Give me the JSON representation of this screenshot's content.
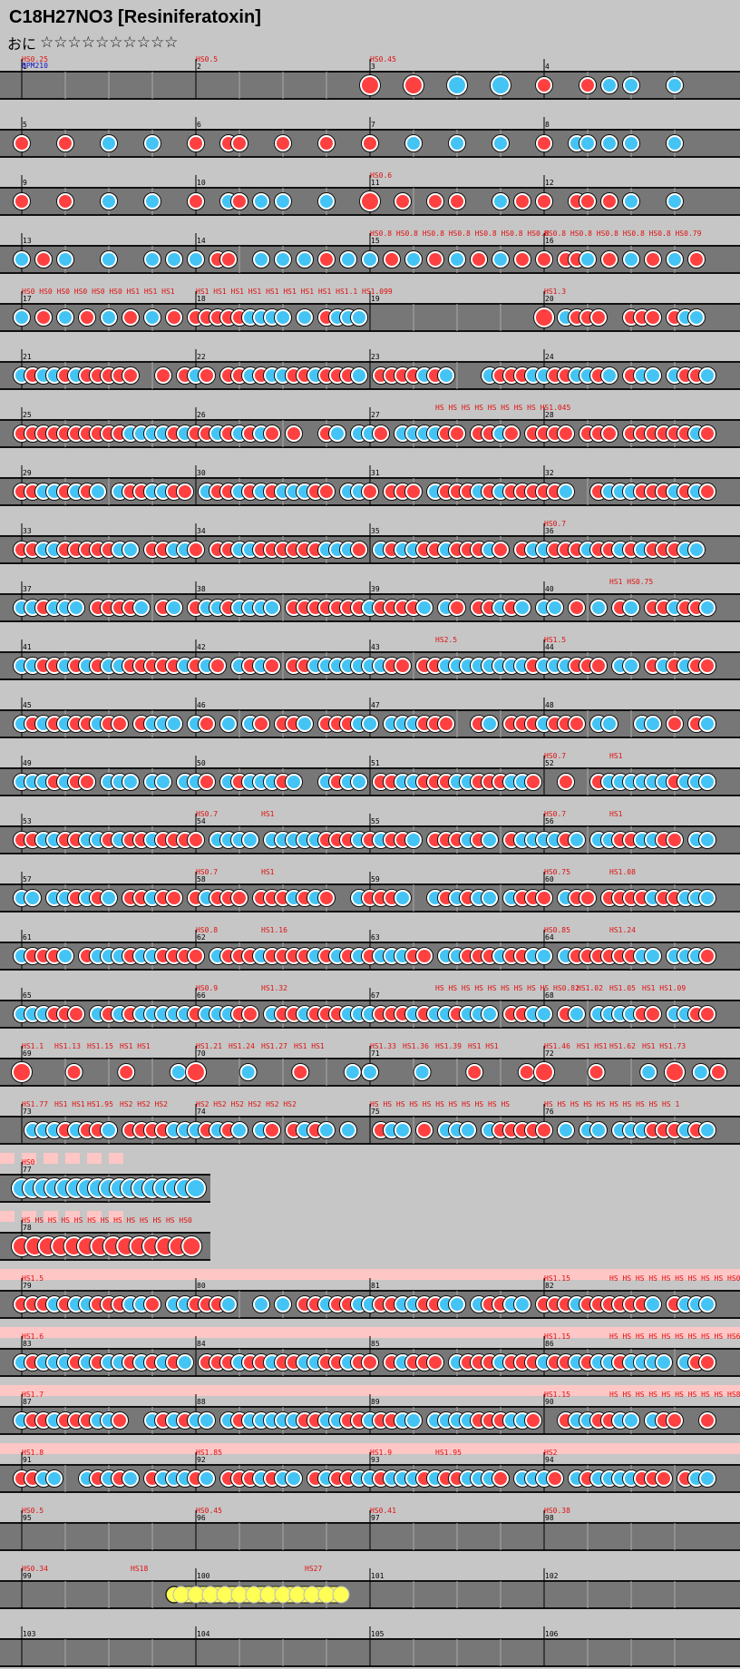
{
  "song_title": "C18H27NO3 [Resiniferatoxin]",
  "difficulty": {
    "label": "おに",
    "stars": "☆☆☆☆☆☆☆☆☆☆"
  },
  "colors": {
    "background": "#c6c6c6",
    "lane": "#777777",
    "lane_border": "#111111",
    "don": "#ff4040",
    "ka": "#44c4f4",
    "drumroll": "#ffff55",
    "gogo_band": "#ffc6c6",
    "label_red": "#e01010",
    "label_blue": "#1414c8"
  },
  "chart_data": {
    "type": "taiko_note_chart",
    "measures_per_row": 4,
    "first_label_blue": "BPM210",
    "rows": [
      {
        "m": [
          1,
          2,
          3,
          4
        ],
        "labels": [
          [
            "HS0.25",
            0,
            0
          ],
          [
            "HS0.5",
            1,
            0
          ],
          [
            "HS0.45",
            2,
            0
          ]
        ],
        "notes": [
          [
            2,
            0,
            "D"
          ],
          [
            2,
            2,
            "D"
          ],
          [
            2,
            4,
            "K"
          ],
          [
            2,
            6,
            "K"
          ],
          [
            3,
            0,
            "d"
          ],
          [
            3,
            2,
            "d"
          ],
          [
            3,
            3,
            "k"
          ],
          [
            3,
            4,
            "k"
          ],
          [
            3,
            6,
            "k"
          ]
        ]
      },
      {
        "m": [
          5,
          6,
          7,
          8
        ],
        "labels": [],
        "notes": [
          [
            0,
            0,
            "d"
          ],
          [
            0,
            2,
            "d"
          ],
          [
            0,
            4,
            "k"
          ],
          [
            0,
            6,
            "k"
          ],
          [
            1,
            0,
            "d"
          ],
          [
            1,
            1.5,
            "d"
          ],
          [
            1,
            2,
            "d"
          ],
          [
            1,
            4,
            "d"
          ],
          [
            1,
            6,
            "d"
          ],
          [
            2,
            0,
            "d"
          ],
          [
            2,
            2,
            "k"
          ],
          [
            2,
            4,
            "k"
          ],
          [
            2,
            6,
            "k"
          ],
          [
            3,
            0,
            "d"
          ],
          [
            3,
            1.5,
            "k"
          ],
          [
            3,
            2,
            "k"
          ],
          [
            3,
            3,
            "k"
          ],
          [
            3,
            4,
            "k"
          ],
          [
            3,
            6,
            "k"
          ]
        ]
      },
      {
        "m": [
          9,
          10,
          11,
          12
        ],
        "labels": [
          [
            "HS0.6",
            2,
            0
          ]
        ],
        "notes": [
          [
            0,
            0,
            "d"
          ],
          [
            0,
            2,
            "d"
          ],
          [
            0,
            4,
            "k"
          ],
          [
            0,
            6,
            "k"
          ],
          [
            1,
            0,
            "d"
          ],
          [
            1,
            1.5,
            "k"
          ],
          [
            1,
            2,
            "d"
          ],
          [
            1,
            3,
            "k"
          ],
          [
            1,
            4,
            "k"
          ],
          [
            1,
            6,
            "k"
          ],
          [
            2,
            0,
            "D"
          ],
          [
            2,
            1.5,
            "d"
          ],
          [
            2,
            3,
            "d"
          ],
          [
            2,
            4,
            "d"
          ],
          [
            2,
            6,
            "k"
          ],
          [
            2,
            7,
            "d"
          ],
          [
            3,
            0,
            "d"
          ],
          [
            3,
            1.5,
            "d"
          ],
          [
            3,
            2,
            "d"
          ],
          [
            3,
            3,
            "d"
          ],
          [
            3,
            4,
            "k"
          ],
          [
            3,
            6,
            "k"
          ]
        ]
      },
      {
        "m": [
          13,
          14,
          15,
          16
        ],
        "labels": [
          [
            "HS0.8 HS0.8 HS0.8 HS0.8 HS0.8 HS0.8 HS0.8",
            2,
            0
          ],
          [
            "HS0.8 HS0.8 HS0.8 HS0.8 HS0.8 HS0.79",
            3,
            0
          ]
        ],
        "notes": [
          [
            0,
            0,
            "k"
          ],
          [
            0,
            1,
            "d"
          ],
          [
            0,
            2,
            "k"
          ],
          [
            0,
            4,
            "k"
          ],
          [
            0,
            6,
            "k"
          ],
          [
            0,
            7,
            "k"
          ],
          [
            1,
            0,
            "k"
          ],
          [
            1,
            1,
            "d"
          ],
          [
            1,
            1.5,
            "d"
          ],
          [
            1,
            3,
            "k"
          ],
          [
            1,
            4,
            "k"
          ],
          [
            1,
            5,
            "k"
          ],
          [
            1,
            6,
            "d"
          ],
          [
            1,
            7,
            "k"
          ],
          [
            2,
            0,
            "k"
          ],
          [
            2,
            1,
            "d"
          ],
          [
            2,
            2,
            "k"
          ],
          [
            2,
            3,
            "d"
          ],
          [
            2,
            4,
            "k"
          ],
          [
            2,
            5,
            "d"
          ],
          [
            2,
            6,
            "k"
          ],
          [
            2,
            7,
            "d"
          ],
          [
            3,
            0,
            "d"
          ],
          [
            3,
            1,
            "d"
          ],
          [
            3,
            1.5,
            "d"
          ],
          [
            3,
            2,
            "k"
          ],
          [
            3,
            3,
            "d"
          ],
          [
            3,
            4,
            "k"
          ],
          [
            3,
            5,
            "d"
          ],
          [
            3,
            6,
            "k"
          ],
          [
            3,
            7,
            "d"
          ]
        ]
      },
      {
        "m": [
          17,
          18,
          19,
          20
        ],
        "labels": [
          [
            "HS0 HS0 HS0 HS0 HS0 HS0 HS1 HS1 HS1",
            0,
            0
          ],
          [
            "HS1 HS1 HS1 HS1 HS1 HS1 HS1 HS1 HS1.1 HS1.099",
            1,
            0
          ],
          [
            "HS1.3",
            3,
            0
          ]
        ],
        "notes": [
          [
            0,
            0,
            "k"
          ],
          [
            0,
            1,
            "d"
          ],
          [
            0,
            2,
            "k"
          ],
          [
            0,
            3,
            "d"
          ],
          [
            0,
            4,
            "k"
          ],
          [
            0,
            5,
            "d"
          ],
          [
            0,
            6,
            "k"
          ],
          [
            0,
            7,
            "d"
          ],
          [
            1,
            0,
            "d"
          ],
          [
            1,
            0.5,
            "d"
          ],
          [
            1,
            1,
            "d"
          ],
          [
            1,
            1.5,
            "d"
          ],
          [
            1,
            2,
            "d"
          ],
          [
            1,
            2.5,
            "k"
          ],
          [
            1,
            3,
            "k"
          ],
          [
            1,
            3.5,
            "k"
          ],
          [
            1,
            4,
            "k"
          ],
          [
            1,
            5,
            "k"
          ],
          [
            1,
            6,
            "d"
          ],
          [
            1,
            6.5,
            "k"
          ],
          [
            1,
            7,
            "k"
          ],
          [
            1,
            7.5,
            "k"
          ],
          [
            3,
            0,
            "D"
          ],
          [
            3,
            1,
            "k"
          ],
          [
            3,
            1.5,
            "d"
          ],
          [
            3,
            2,
            "d"
          ],
          [
            3,
            2.5,
            "d"
          ],
          [
            3,
            4,
            "d"
          ],
          [
            3,
            4.5,
            "d"
          ],
          [
            3,
            5,
            "d"
          ],
          [
            3,
            6,
            "d"
          ],
          [
            3,
            6.5,
            "k"
          ],
          [
            3,
            7,
            "k"
          ]
        ]
      },
      {
        "m": [
          21,
          22,
          23,
          24
        ],
        "labels": [],
        "dense": "mix1"
      },
      {
        "m": [
          25,
          26,
          27,
          28
        ],
        "labels": [
          [
            "HS HS HS HS HS HS HS HS HS1.045",
            2,
            6
          ]
        ],
        "dense": "mix2"
      },
      {
        "m": [
          29,
          30,
          31,
          32
        ],
        "labels": [],
        "dense": "mix3"
      },
      {
        "m": [
          33,
          34,
          35,
          36
        ],
        "labels": [
          [
            "HS0.7",
            3,
            0
          ]
        ],
        "dense": "mix4"
      },
      {
        "m": [
          37,
          38,
          39,
          40
        ],
        "labels": [
          [
            "HS1 HS0.75",
            3,
            6
          ]
        ],
        "dense": "mix5"
      },
      {
        "m": [
          41,
          42,
          43,
          44
        ],
        "labels": [
          [
            "HS2.5",
            2,
            6
          ],
          [
            "HS1.5",
            3,
            0
          ]
        ],
        "dense": "mix6"
      },
      {
        "m": [
          45,
          46,
          47,
          48
        ],
        "labels": [],
        "dense": "mix7"
      },
      {
        "m": [
          49,
          50,
          51,
          52
        ],
        "labels": [
          [
            "HS0.7",
            3,
            0
          ],
          [
            "HS1",
            3,
            6
          ]
        ],
        "dense": "mix8"
      },
      {
        "m": [
          53,
          54,
          55,
          56
        ],
        "labels": [
          [
            "HS0.7",
            1,
            0
          ],
          [
            "HS1",
            1,
            6
          ],
          [
            "HS0.7",
            3,
            0
          ],
          [
            "HS1",
            3,
            6
          ]
        ],
        "dense": "mix9"
      },
      {
        "m": [
          57,
          58,
          59,
          60
        ],
        "labels": [
          [
            "HS0.7",
            1,
            0
          ],
          [
            "HS1",
            1,
            6
          ],
          [
            "HS0.75",
            3,
            0
          ],
          [
            "HS1.08",
            3,
            6
          ]
        ],
        "dense": "mix10"
      },
      {
        "m": [
          61,
          62,
          63,
          64
        ],
        "labels": [
          [
            "HS0.8",
            1,
            0
          ],
          [
            "HS1.16",
            1,
            6
          ],
          [
            "HS0.85",
            3,
            0
          ],
          [
            "HS1.24",
            3,
            6
          ]
        ],
        "dense": "mix11"
      },
      {
        "m": [
          65,
          66,
          67,
          68
        ],
        "labels": [
          [
            "HS0.9",
            1,
            0
          ],
          [
            "HS1.32",
            1,
            6
          ],
          [
            "HS HS HS HS HS HS HS HS HS HS0.82",
            2,
            6
          ],
          [
            "HS1.02",
            3,
            3
          ],
          [
            "HS1.05",
            3,
            6
          ],
          [
            "HS1 HS1.09",
            3,
            9
          ]
        ],
        "dense": "mix12"
      },
      {
        "m": [
          69,
          70,
          71,
          72
        ],
        "labels": [
          [
            "HS1.1",
            0,
            0
          ],
          [
            "HS1.13",
            0,
            3
          ],
          [
            "HS1.15",
            0,
            6
          ],
          [
            "HS1 HS1",
            0,
            9
          ],
          [
            "HS1.21",
            1,
            0
          ],
          [
            "HS1.24",
            1,
            3
          ],
          [
            "HS1.27",
            1,
            6
          ],
          [
            "HS1 HS1",
            1,
            9
          ],
          [
            "HS1.33",
            2,
            0
          ],
          [
            "HS1.36",
            2,
            3
          ],
          [
            "HS1.39",
            2,
            6
          ],
          [
            "HS1 HS1",
            2,
            9
          ],
          [
            "HS1.46",
            3,
            0
          ],
          [
            "HS1 HS1",
            3,
            3
          ],
          [
            "HS1.62",
            3,
            6
          ],
          [
            "HS1 HS1.73",
            3,
            9
          ]
        ],
        "dense": "spread"
      },
      {
        "m": [
          73,
          74,
          75,
          76
        ],
        "labels": [
          [
            "HS1.77",
            0,
            0
          ],
          [
            "HS1 HS1",
            0,
            3
          ],
          [
            "HS1.95",
            0,
            6
          ],
          [
            "HS2 HS2 HS2",
            0,
            9
          ],
          [
            "HS2 HS2 HS2 HS2 HS2 HS2",
            1,
            0
          ],
          [
            "HS HS HS HS HS HS HS HS HS HS HS",
            2,
            0
          ],
          [
            "HS HS HS HS HS HS HS HS HS HS 1",
            3,
            0
          ]
        ],
        "dense": "mix13"
      },
      {
        "m": [
          77
        ],
        "short": true,
        "labels": [
          [
            "HS0",
            0,
            0
          ]
        ],
        "dense": "kaRun"
      },
      {
        "m": [
          78
        ],
        "short": true,
        "labels": [
          [
            "HS HS HS HS HS HS HS HS HS HS HS HS HS0",
            0,
            0
          ]
        ],
        "dense": "donRun"
      },
      {
        "m": [
          79,
          80,
          81,
          82
        ],
        "gogo": true,
        "labels": [
          [
            "HS1.5",
            0,
            0
          ],
          [
            "HS1.15",
            3,
            0
          ],
          [
            "HS HS HS HS HS HS HS HS HS HS0",
            3,
            6
          ]
        ],
        "dense": "mix14"
      },
      {
        "m": [
          83,
          84,
          85,
          86
        ],
        "gogo": true,
        "labels": [
          [
            "HS1.6",
            0,
            0
          ],
          [
            "HS1.15",
            3,
            0
          ],
          [
            "HS HS HS HS HS HS HS HS HS HS6",
            3,
            6
          ]
        ],
        "dense": "mix15"
      },
      {
        "m": [
          87,
          88,
          89,
          90
        ],
        "gogo": true,
        "labels": [
          [
            "HS1.7",
            0,
            0
          ],
          [
            "HS1.15",
            3,
            0
          ],
          [
            "HS HS HS HS HS HS HS HS HS HS8",
            3,
            6
          ]
        ],
        "dense": "mix16"
      },
      {
        "m": [
          91,
          92,
          93,
          94
        ],
        "gogo": true,
        "labels": [
          [
            "HS1.8",
            0,
            0
          ],
          [
            "HS1.85",
            1,
            0
          ],
          [
            "HS1.9",
            2,
            0
          ],
          [
            "HS1.95",
            2,
            6
          ],
          [
            "HS2",
            3,
            0
          ]
        ],
        "dense": "mix17"
      },
      {
        "m": [
          95,
          96,
          97,
          98
        ],
        "labels": [
          [
            "HS0.5",
            0,
            0
          ],
          [
            "HS0.45",
            1,
            0
          ],
          [
            "HS0.41",
            2,
            0
          ],
          [
            "HS0.38",
            3,
            0
          ]
        ],
        "notes": []
      },
      {
        "m": [
          99,
          100,
          101,
          102
        ],
        "labels": [
          [
            "HS0.34",
            0,
            0
          ],
          [
            "HS18",
            0,
            10
          ],
          [
            "HS27",
            1,
            10
          ]
        ],
        "drumroll": true,
        "notes": []
      },
      {
        "m": [
          103,
          104,
          105,
          106
        ],
        "labels": [],
        "notes": []
      }
    ]
  }
}
